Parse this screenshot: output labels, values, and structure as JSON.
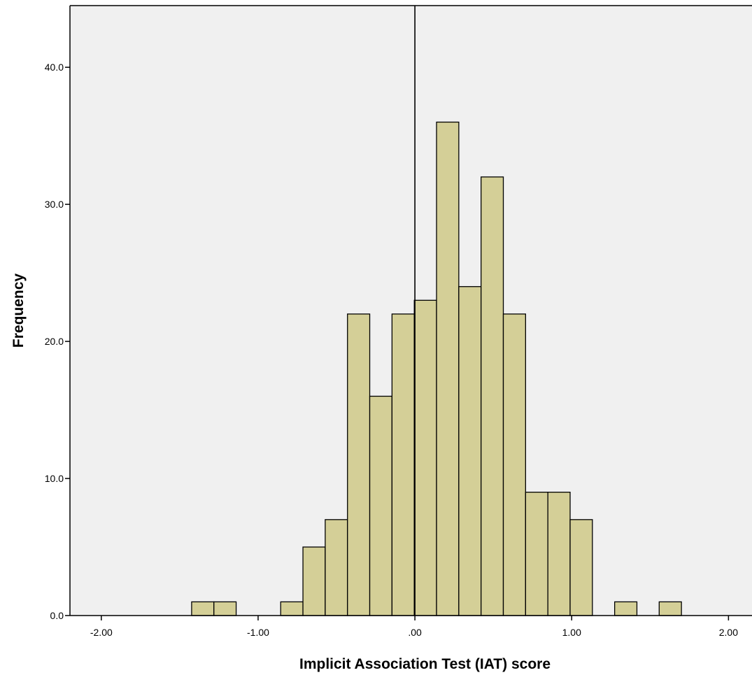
{
  "chart_data": {
    "type": "bar",
    "subtype": "histogram",
    "title": "",
    "xlabel": "Implicit Association Test (IAT) score",
    "ylabel": "Frequency",
    "xlim": [
      -2.2,
      2.15
    ],
    "ylim": [
      0,
      44.5
    ],
    "xticks": [
      -2.0,
      -1.0,
      0.0,
      1.0,
      2.0
    ],
    "xtick_labels": [
      "-2.00",
      "-1.00",
      ".00",
      "1.00",
      "2.00"
    ],
    "yticks": [
      0,
      10,
      20,
      30,
      40
    ],
    "ytick_labels": [
      "0.0",
      "10.0",
      "20.0",
      "30.0",
      "40.0"
    ],
    "reference_line_x": 0.0,
    "bin_width": 0.142,
    "bins": [
      {
        "x_start": -1.424,
        "x_end": -1.282,
        "count": 1
      },
      {
        "x_start": -1.282,
        "x_end": -1.14,
        "count": 1
      },
      {
        "x_start": -1.14,
        "x_end": -0.998,
        "count": 0
      },
      {
        "x_start": -0.998,
        "x_end": -0.856,
        "count": 0
      },
      {
        "x_start": -0.856,
        "x_end": -0.714,
        "count": 1
      },
      {
        "x_start": -0.714,
        "x_end": -0.572,
        "count": 5
      },
      {
        "x_start": -0.572,
        "x_end": -0.43,
        "count": 7
      },
      {
        "x_start": -0.43,
        "x_end": -0.288,
        "count": 22
      },
      {
        "x_start": -0.288,
        "x_end": -0.146,
        "count": 16
      },
      {
        "x_start": -0.146,
        "x_end": -0.004,
        "count": 22
      },
      {
        "x_start": -0.004,
        "x_end": 0.138,
        "count": 23
      },
      {
        "x_start": 0.138,
        "x_end": 0.28,
        "count": 36
      },
      {
        "x_start": 0.28,
        "x_end": 0.422,
        "count": 24
      },
      {
        "x_start": 0.422,
        "x_end": 0.564,
        "count": 32
      },
      {
        "x_start": 0.564,
        "x_end": 0.706,
        "count": 22
      },
      {
        "x_start": 0.706,
        "x_end": 0.848,
        "count": 9
      },
      {
        "x_start": 0.848,
        "x_end": 0.99,
        "count": 9
      },
      {
        "x_start": 0.99,
        "x_end": 1.132,
        "count": 7
      },
      {
        "x_start": 1.132,
        "x_end": 1.274,
        "count": 0
      },
      {
        "x_start": 1.274,
        "x_end": 1.416,
        "count": 1
      },
      {
        "x_start": 1.416,
        "x_end": 1.558,
        "count": 0
      },
      {
        "x_start": 1.558,
        "x_end": 1.7,
        "count": 1
      }
    ],
    "grid": false,
    "legend": "none",
    "colors": {
      "plot_background": "#f0f0f0",
      "bar_fill": "#d4cf97",
      "bar_stroke": "#000000",
      "reference_line": "#000000"
    }
  }
}
